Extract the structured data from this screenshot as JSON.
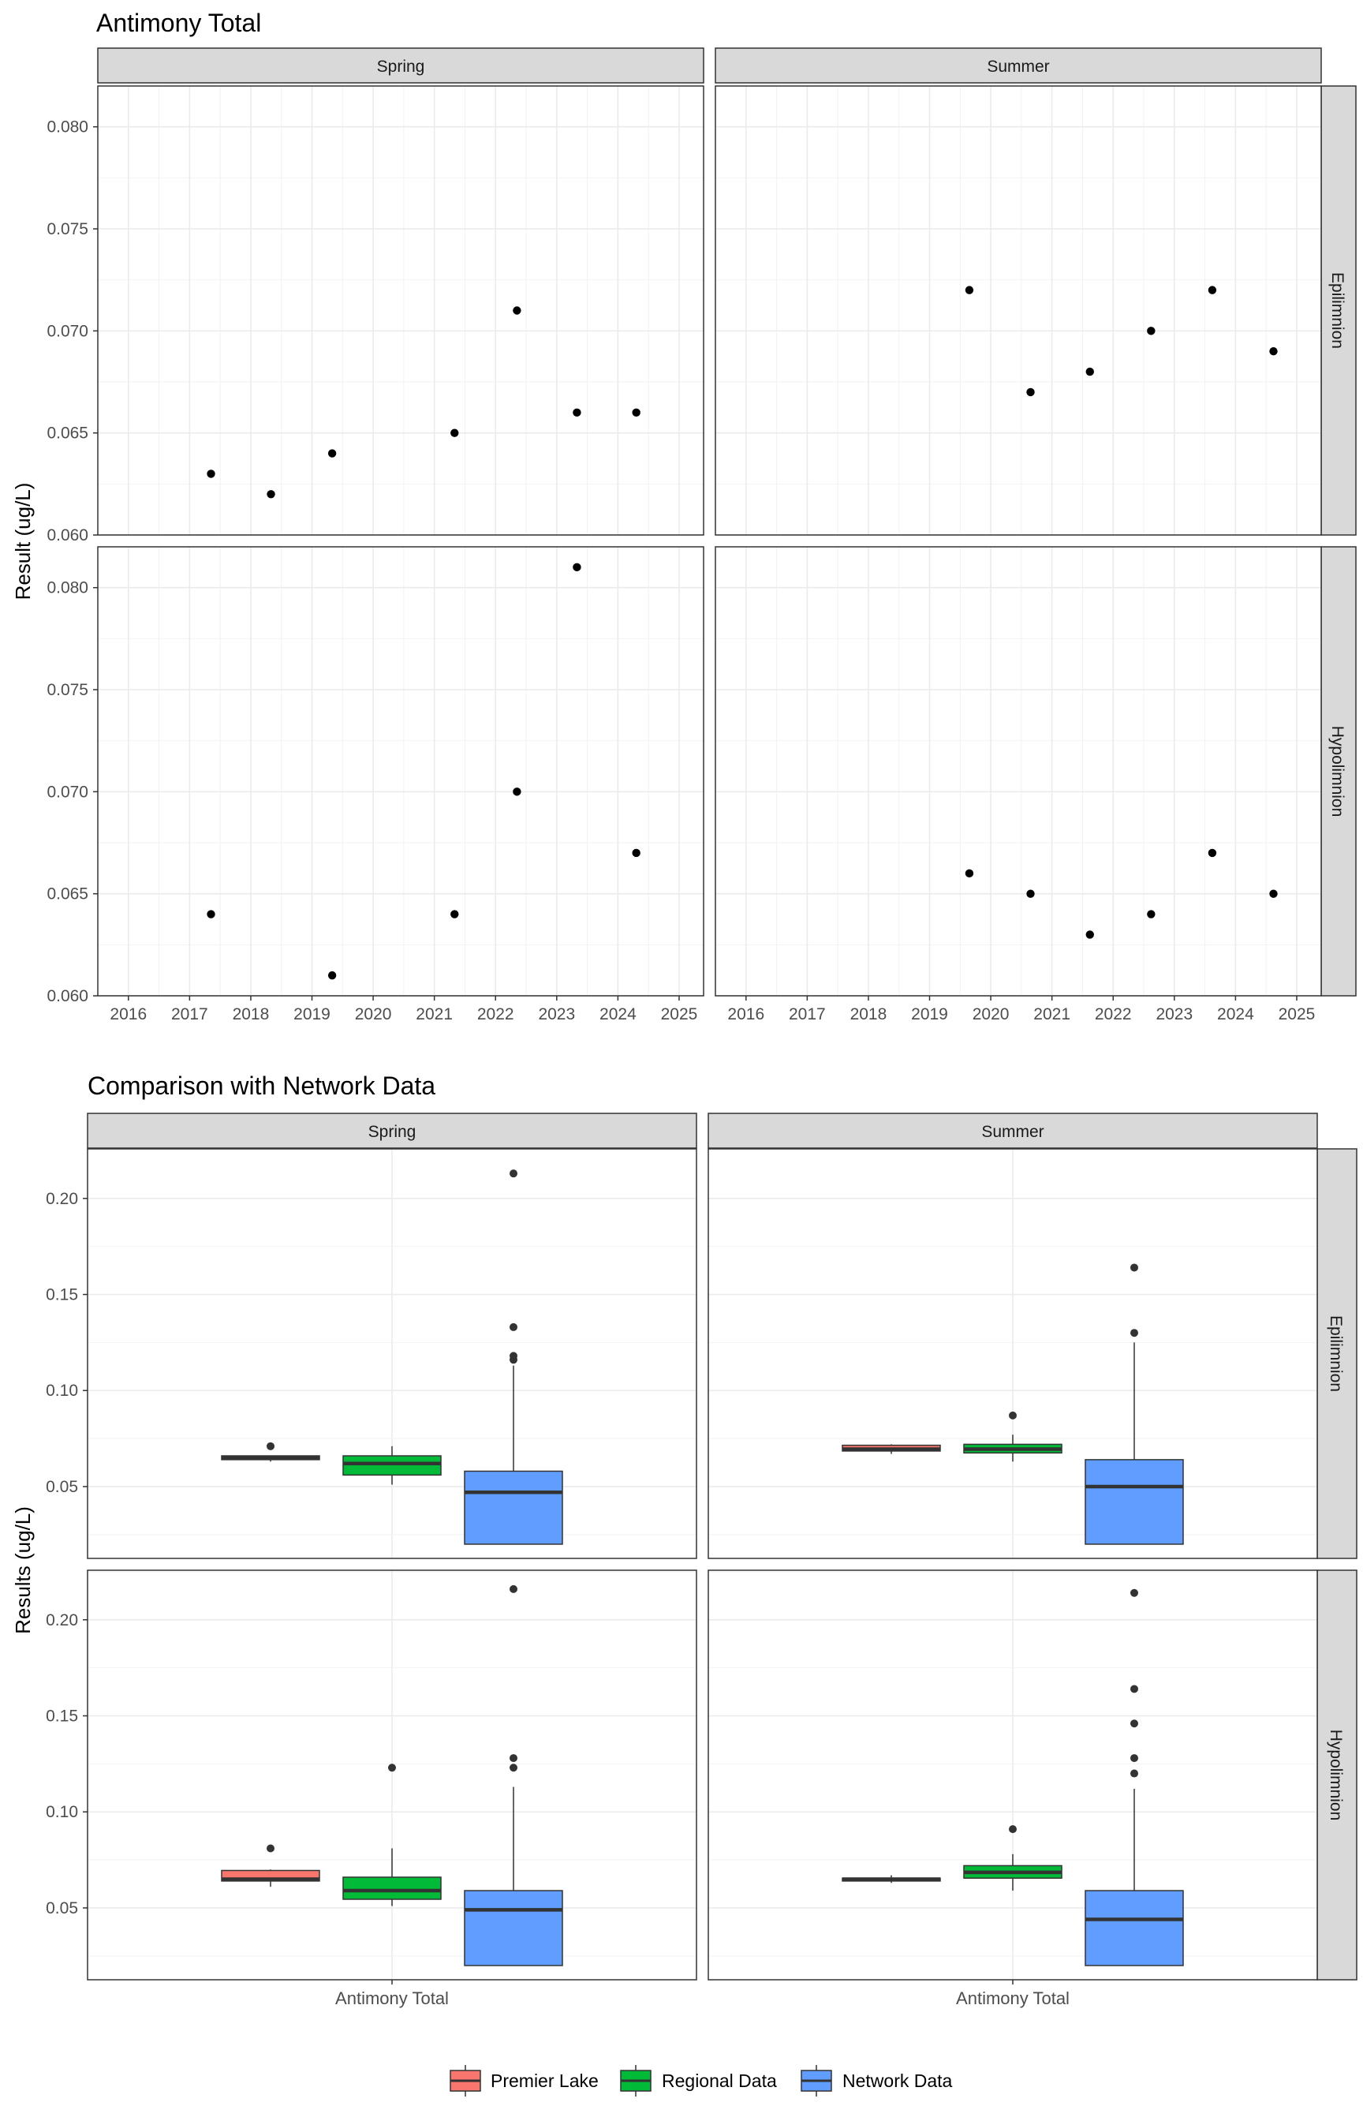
{
  "chart_data": [
    {
      "type": "scatter",
      "title": "Antimony Total",
      "ylabel": "Result (ug/L)",
      "xlabel": "",
      "ylim": [
        0.06,
        0.082
      ],
      "yticks": [
        "0.060",
        "0.065",
        "0.070",
        "0.075",
        "0.080"
      ],
      "xlim": [
        2015.5,
        2025.4
      ],
      "xticks": [
        "2016",
        "2017",
        "2018",
        "2019",
        "2020",
        "2021",
        "2022",
        "2023",
        "2024",
        "2025"
      ],
      "columns": [
        "Spring",
        "Summer"
      ],
      "rows": [
        "Epilimnion",
        "Hypolimnion"
      ],
      "grid": true,
      "panels": [
        {
          "col": "Spring",
          "row": "Epilimnion",
          "points": [
            {
              "x": 2017.35,
              "y": 0.063
            },
            {
              "x": 2018.33,
              "y": 0.062
            },
            {
              "x": 2019.33,
              "y": 0.064
            },
            {
              "x": 2021.33,
              "y": 0.065
            },
            {
              "x": 2022.35,
              "y": 0.071
            },
            {
              "x": 2023.33,
              "y": 0.066
            },
            {
              "x": 2024.3,
              "y": 0.066
            }
          ]
        },
        {
          "col": "Summer",
          "row": "Epilimnion",
          "points": [
            {
              "x": 2019.65,
              "y": 0.072
            },
            {
              "x": 2020.65,
              "y": 0.067
            },
            {
              "x": 2021.62,
              "y": 0.068
            },
            {
              "x": 2022.62,
              "y": 0.07
            },
            {
              "x": 2023.62,
              "y": 0.072
            },
            {
              "x": 2024.62,
              "y": 0.069
            }
          ]
        },
        {
          "col": "Spring",
          "row": "Hypolimnion",
          "points": [
            {
              "x": 2017.35,
              "y": 0.064
            },
            {
              "x": 2019.33,
              "y": 0.061
            },
            {
              "x": 2021.33,
              "y": 0.064
            },
            {
              "x": 2022.35,
              "y": 0.07
            },
            {
              "x": 2023.33,
              "y": 0.081
            },
            {
              "x": 2024.3,
              "y": 0.067
            }
          ]
        },
        {
          "col": "Summer",
          "row": "Hypolimnion",
          "points": [
            {
              "x": 2019.65,
              "y": 0.066
            },
            {
              "x": 2020.65,
              "y": 0.065
            },
            {
              "x": 2021.62,
              "y": 0.063
            },
            {
              "x": 2022.62,
              "y": 0.064
            },
            {
              "x": 2023.62,
              "y": 0.067
            },
            {
              "x": 2024.62,
              "y": 0.065
            }
          ]
        }
      ]
    },
    {
      "type": "boxplot",
      "title": "Comparison with Network Data",
      "ylabel": "Results (ug/L)",
      "xlabel": "",
      "category": "Antimony Total",
      "ylim": [
        0.0126,
        0.2258
      ],
      "yticks": [
        "0.05",
        "0.10",
        "0.15",
        "0.20"
      ],
      "columns": [
        "Spring",
        "Summer"
      ],
      "rows": [
        "Epilimnion",
        "Hypolimnion"
      ],
      "grid": true,
      "legend_position": "bottom",
      "series": [
        {
          "name": "Premier Lake",
          "color": "#F8766D"
        },
        {
          "name": "Regional Data",
          "color": "#00BA38"
        },
        {
          "name": "Network Data",
          "color": "#619CFF"
        }
      ],
      "panels": [
        {
          "col": "Spring",
          "row": "Epilimnion",
          "boxes": [
            {
              "series": "Premier Lake",
              "min": 0.063,
              "q1": 0.064,
              "median": 0.065,
              "q3": 0.066,
              "max": 0.066,
              "outliers": [
                0.071
              ]
            },
            {
              "series": "Regional Data",
              "min": 0.051,
              "q1": 0.056,
              "median": 0.062,
              "q3": 0.066,
              "max": 0.071,
              "outliers": []
            },
            {
              "series": "Network Data",
              "min": 0.02,
              "q1": 0.02,
              "median": 0.047,
              "q3": 0.058,
              "max": 0.113,
              "outliers": [
                0.116,
                0.118,
                0.133,
                0.213
              ]
            }
          ]
        },
        {
          "col": "Summer",
          "row": "Epilimnion",
          "boxes": [
            {
              "series": "Premier Lake",
              "min": 0.067,
              "q1": 0.0685,
              "median": 0.0695,
              "q3": 0.0715,
              "max": 0.072,
              "outliers": []
            },
            {
              "series": "Regional Data",
              "min": 0.063,
              "q1": 0.0675,
              "median": 0.0695,
              "q3": 0.072,
              "max": 0.077,
              "outliers": [
                0.087
              ]
            },
            {
              "series": "Network Data",
              "min": 0.02,
              "q1": 0.02,
              "median": 0.05,
              "q3": 0.064,
              "max": 0.125,
              "outliers": [
                0.13,
                0.164
              ]
            }
          ]
        },
        {
          "col": "Spring",
          "row": "Hypolimnion",
          "boxes": [
            {
              "series": "Premier Lake",
              "min": 0.061,
              "q1": 0.064,
              "median": 0.065,
              "q3": 0.0695,
              "max": 0.07,
              "outliers": [
                0.081
              ]
            },
            {
              "series": "Regional Data",
              "min": 0.051,
              "q1": 0.0545,
              "median": 0.059,
              "q3": 0.066,
              "max": 0.081,
              "outliers": [
                0.123
              ]
            },
            {
              "series": "Network Data",
              "min": 0.02,
              "q1": 0.02,
              "median": 0.049,
              "q3": 0.059,
              "max": 0.113,
              "outliers": [
                0.123,
                0.128,
                0.216
              ]
            }
          ]
        },
        {
          "col": "Summer",
          "row": "Hypolimnion",
          "boxes": [
            {
              "series": "Premier Lake",
              "min": 0.063,
              "q1": 0.064,
              "median": 0.065,
              "q3": 0.0655,
              "max": 0.067,
              "outliers": []
            },
            {
              "series": "Regional Data",
              "min": 0.059,
              "q1": 0.0655,
              "median": 0.0685,
              "q3": 0.072,
              "max": 0.078,
              "outliers": [
                0.091
              ]
            },
            {
              "series": "Network Data",
              "min": 0.02,
              "q1": 0.02,
              "median": 0.044,
              "q3": 0.059,
              "max": 0.112,
              "outliers": [
                0.12,
                0.128,
                0.146,
                0.164,
                0.214
              ]
            }
          ]
        }
      ]
    }
  ]
}
